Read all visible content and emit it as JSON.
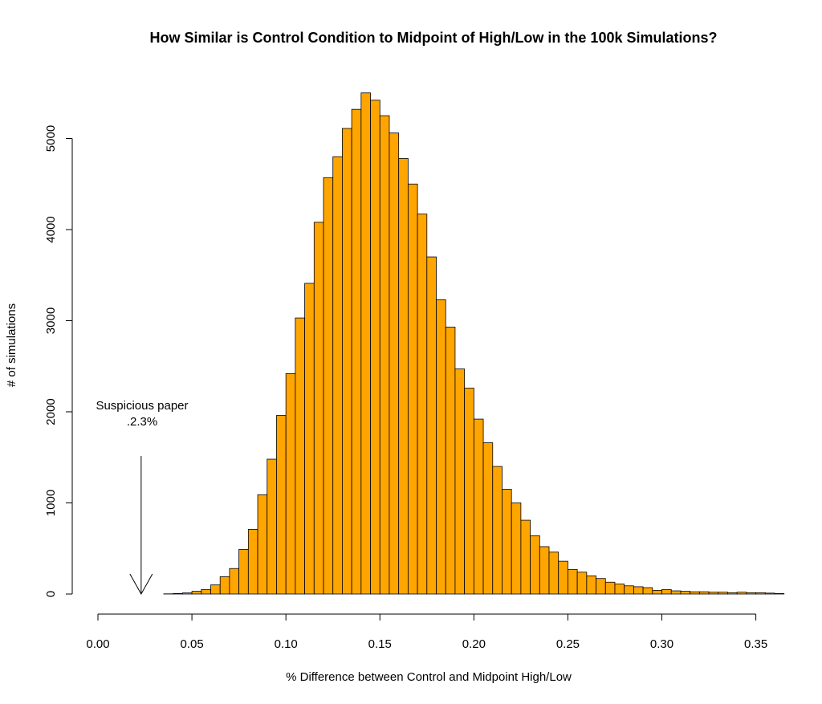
{
  "chart_data": {
    "type": "bar",
    "title": "How Similar is Control Condition to Midpoint of High/Low in the 100k Simulations?",
    "xlabel": "% Difference between Control and Midpoint High/Low",
    "ylabel": "# of simulations",
    "xlim": [
      0.0,
      0.365
    ],
    "ylim": [
      0,
      5500
    ],
    "x_ticks": [
      "0.00",
      "0.05",
      "0.10",
      "0.15",
      "0.20",
      "0.25",
      "0.30",
      "0.35"
    ],
    "y_ticks": [
      "0",
      "1000",
      "2000",
      "3000",
      "4000",
      "5000"
    ],
    "bar_color": "#FFA500",
    "bin_width": 0.005,
    "bins_start": [
      0.035,
      0.04,
      0.045,
      0.05,
      0.055,
      0.06,
      0.065,
      0.07,
      0.075,
      0.08,
      0.085,
      0.09,
      0.095,
      0.1,
      0.105,
      0.11,
      0.115,
      0.12,
      0.125,
      0.13,
      0.135,
      0.14,
      0.145,
      0.15,
      0.155,
      0.16,
      0.165,
      0.17,
      0.175,
      0.18,
      0.185,
      0.19,
      0.195,
      0.2,
      0.205,
      0.21,
      0.215,
      0.22,
      0.225,
      0.23,
      0.235,
      0.24,
      0.245,
      0.25,
      0.255,
      0.26,
      0.265,
      0.27,
      0.275,
      0.28,
      0.285,
      0.29,
      0.295,
      0.3,
      0.305,
      0.31,
      0.315,
      0.32,
      0.325,
      0.33,
      0.335,
      0.34,
      0.345,
      0.35,
      0.355,
      0.36
    ],
    "counts": [
      2,
      6,
      12,
      30,
      50,
      100,
      190,
      280,
      490,
      710,
      1090,
      1480,
      1960,
      2420,
      3030,
      3410,
      4080,
      4570,
      4800,
      5110,
      5320,
      5500,
      5420,
      5250,
      5060,
      4780,
      4500,
      4170,
      3700,
      3230,
      2930,
      2470,
      2260,
      1920,
      1660,
      1400,
      1150,
      1000,
      810,
      640,
      520,
      460,
      360,
      270,
      240,
      200,
      170,
      130,
      110,
      90,
      80,
      70,
      40,
      50,
      35,
      30,
      25,
      25,
      20,
      20,
      15,
      20,
      15,
      15,
      10,
      5
    ],
    "annotation": {
      "text_line1": "Suspicious paper",
      "text_line2": ".2.3%",
      "x": 0.023
    }
  }
}
